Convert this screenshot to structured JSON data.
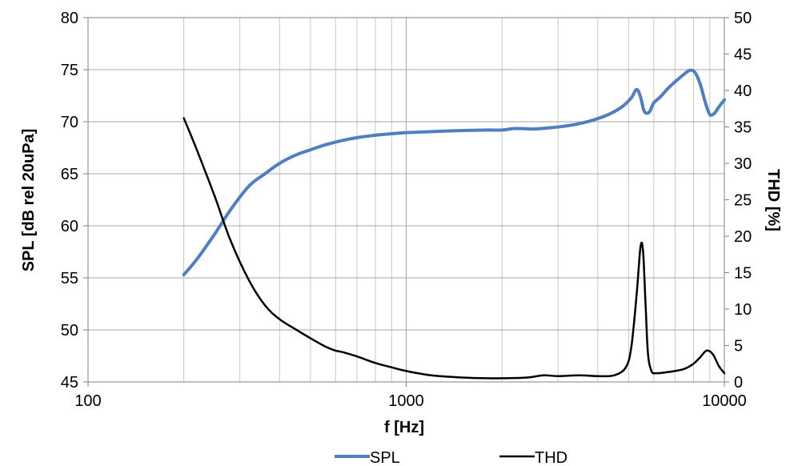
{
  "chart_data": {
    "type": "line",
    "title": "",
    "xlabel": "f [Hz]",
    "ylabel": "SPL [dB rel 20uPa]",
    "y2label": "THD [%]",
    "x_scale": "log",
    "xlim": [
      100,
      10000
    ],
    "ylim": [
      45,
      80
    ],
    "y2lim": [
      0,
      50
    ],
    "x_ticks": [
      100,
      1000,
      10000
    ],
    "y_ticks": [
      45,
      50,
      55,
      60,
      65,
      70,
      75,
      80
    ],
    "y2_ticks": [
      0,
      5,
      10,
      15,
      20,
      25,
      30,
      35,
      40,
      45,
      50
    ],
    "grid": true,
    "legend_position": "bottom",
    "series": [
      {
        "name": "SPL",
        "axis": "left",
        "color": "#4f7fbf",
        "x": [
          200,
          220,
          250,
          280,
          320,
          360,
          400,
          450,
          500,
          560,
          630,
          710,
          800,
          900,
          1000,
          1200,
          1500,
          1800,
          2000,
          2200,
          2500,
          2800,
          3200,
          3600,
          4000,
          4400,
          4800,
          5100,
          5300,
          5450,
          5600,
          5800,
          6000,
          6300,
          6700,
          7100,
          7500,
          7800,
          8100,
          8400,
          8700,
          9000,
          9300,
          9600,
          10000
        ],
        "y": [
          55.3,
          56.8,
          59.2,
          61.5,
          63.8,
          65.0,
          66.0,
          66.8,
          67.3,
          67.8,
          68.2,
          68.5,
          68.7,
          68.85,
          68.95,
          69.05,
          69.15,
          69.2,
          69.2,
          69.35,
          69.3,
          69.4,
          69.6,
          69.9,
          70.3,
          70.8,
          71.5,
          72.3,
          73.1,
          72.4,
          71.0,
          70.9,
          71.8,
          72.4,
          73.3,
          74.0,
          74.6,
          74.95,
          74.7,
          73.6,
          71.9,
          70.7,
          70.8,
          71.4,
          72.1
        ]
      },
      {
        "name": "THD",
        "axis": "right",
        "color": "#000000",
        "x": [
          200,
          220,
          250,
          280,
          320,
          360,
          400,
          450,
          500,
          560,
          600,
          630,
          700,
          800,
          900,
          1000,
          1200,
          1500,
          1800,
          2000,
          2400,
          2700,
          3000,
          3500,
          4000,
          4500,
          4900,
          5100,
          5300,
          5450,
          5550,
          5650,
          5750,
          5900,
          6100,
          6500,
          7000,
          7500,
          8000,
          8400,
          8800,
          9200,
          9600,
          10000
        ],
        "y": [
          36.2,
          31.8,
          25.5,
          19.5,
          14.0,
          10.5,
          8.6,
          7.2,
          6.0,
          4.8,
          4.3,
          4.1,
          3.5,
          2.6,
          2.0,
          1.5,
          0.9,
          0.6,
          0.5,
          0.5,
          0.6,
          0.9,
          0.8,
          0.9,
          0.8,
          0.9,
          2.0,
          4.8,
          12.0,
          18.5,
          18.0,
          11.0,
          4.0,
          1.5,
          1.2,
          1.3,
          1.5,
          1.8,
          2.5,
          3.4,
          4.3,
          3.8,
          2.2,
          1.2
        ]
      }
    ]
  }
}
